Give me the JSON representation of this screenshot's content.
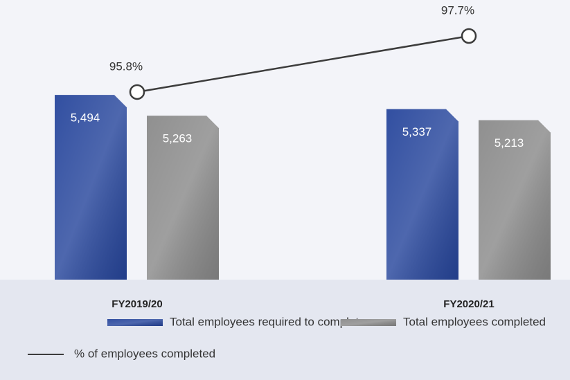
{
  "chart_data": {
    "type": "bar",
    "categories": [
      "FY2019/20",
      "FY2020/21"
    ],
    "series": [
      {
        "name": "Total employees required to complete",
        "color": "#27469c",
        "values": [
          5494,
          5337
        ],
        "value_labels": [
          "5,494",
          "5,337"
        ]
      },
      {
        "name": "Total employees completed",
        "color": "#8a8a8a",
        "values": [
          5263,
          5213
        ],
        "value_labels": [
          "5,263",
          "5,213"
        ]
      },
      {
        "name": "% of employees completed",
        "type": "line",
        "axis": "y2",
        "color": "#3c3c3c",
        "values": [
          95.8,
          97.7
        ],
        "value_labels": [
          "95.8%",
          "97.7%"
        ]
      }
    ],
    "ylim": [
      3440,
      6550
    ],
    "y2lim": [
      89.44,
      98.92
    ]
  }
}
